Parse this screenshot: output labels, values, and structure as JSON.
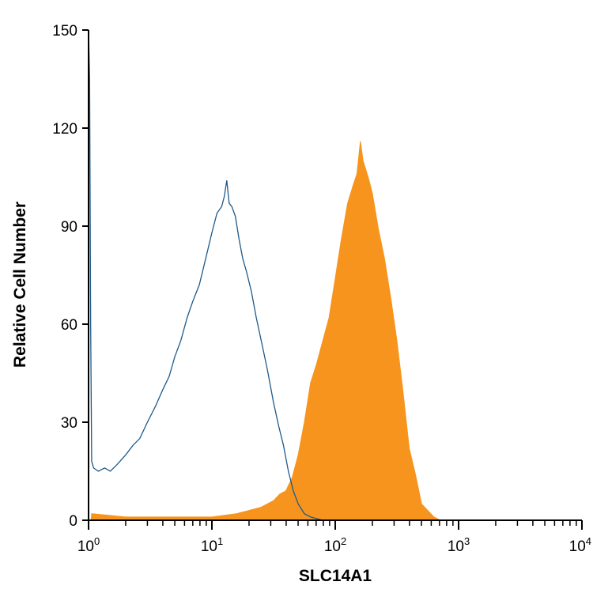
{
  "chart_data": {
    "type": "area",
    "xlabel": "SLC14A1",
    "ylabel": "Relative Cell Number",
    "x_scale": "log",
    "xlim": [
      1,
      10000
    ],
    "ylim": [
      0,
      150
    ],
    "x_ticks": [
      {
        "value": 1,
        "base": "10",
        "exp": "0"
      },
      {
        "value": 10,
        "base": "10",
        "exp": "1"
      },
      {
        "value": 100,
        "base": "10",
        "exp": "2"
      },
      {
        "value": 1000,
        "base": "10",
        "exp": "3"
      },
      {
        "value": 10000,
        "base": "10",
        "exp": "4"
      }
    ],
    "y_ticks": [
      "0",
      "30",
      "60",
      "90",
      "120",
      "150"
    ],
    "y_tick_values": [
      0,
      30,
      60,
      90,
      120,
      150
    ],
    "grid": false,
    "series": [
      {
        "style": "outline",
        "color": "#1f5a8a",
        "points": [
          [
            1.0,
            150
          ],
          [
            1.02,
            135
          ],
          [
            1.04,
            60
          ],
          [
            1.06,
            18
          ],
          [
            1.1,
            16
          ],
          [
            1.2,
            15
          ],
          [
            1.35,
            16
          ],
          [
            1.5,
            15
          ],
          [
            1.7,
            17
          ],
          [
            2.0,
            20
          ],
          [
            2.3,
            23
          ],
          [
            2.6,
            25
          ],
          [
            3.0,
            30
          ],
          [
            3.5,
            35
          ],
          [
            4.0,
            40
          ],
          [
            4.5,
            44
          ],
          [
            5.0,
            50
          ],
          [
            5.6,
            55
          ],
          [
            6.3,
            62
          ],
          [
            7.0,
            67
          ],
          [
            7.9,
            72
          ],
          [
            8.9,
            80
          ],
          [
            10.0,
            88
          ],
          [
            11.0,
            94
          ],
          [
            12.0,
            96
          ],
          [
            12.6,
            99
          ],
          [
            13.2,
            104
          ],
          [
            13.8,
            97
          ],
          [
            14.5,
            96
          ],
          [
            15.5,
            93
          ],
          [
            16.6,
            86
          ],
          [
            17.8,
            80
          ],
          [
            19.1,
            76
          ],
          [
            20.9,
            70
          ],
          [
            22.9,
            62
          ],
          [
            25.1,
            55
          ],
          [
            28.2,
            46
          ],
          [
            31.6,
            36
          ],
          [
            34.7,
            29
          ],
          [
            38.0,
            23
          ],
          [
            41.7,
            15
          ],
          [
            45.7,
            9
          ],
          [
            50.1,
            5
          ],
          [
            56.2,
            2
          ],
          [
            63.1,
            1
          ],
          [
            79.4,
            0
          ],
          [
            10000,
            0
          ]
        ]
      },
      {
        "style": "filled",
        "color": "#f7941d",
        "points": [
          [
            1.0,
            0
          ],
          [
            1.05,
            0
          ],
          [
            1.06,
            2
          ],
          [
            2.0,
            1
          ],
          [
            5.0,
            1
          ],
          [
            10.0,
            1
          ],
          [
            15.8,
            2
          ],
          [
            20.0,
            3
          ],
          [
            25.1,
            4
          ],
          [
            31.6,
            6
          ],
          [
            35.5,
            8
          ],
          [
            39.8,
            9
          ],
          [
            44.7,
            13
          ],
          [
            50.1,
            20
          ],
          [
            56.2,
            30
          ],
          [
            63.1,
            42
          ],
          [
            70.8,
            48
          ],
          [
            79.4,
            55
          ],
          [
            89.1,
            62
          ],
          [
            100,
            74
          ],
          [
            112,
            86
          ],
          [
            126,
            97
          ],
          [
            141,
            103
          ],
          [
            150,
            106
          ],
          [
            160,
            116
          ],
          [
            168,
            110
          ],
          [
            178,
            107
          ],
          [
            188,
            104
          ],
          [
            200,
            100
          ],
          [
            224,
            89
          ],
          [
            251,
            80
          ],
          [
            282,
            68
          ],
          [
            316,
            55
          ],
          [
            355,
            39
          ],
          [
            398,
            22
          ],
          [
            447,
            14
          ],
          [
            501,
            5
          ],
          [
            562,
            3
          ],
          [
            631,
            1
          ],
          [
            708,
            0
          ],
          [
            10000,
            0
          ]
        ]
      }
    ]
  }
}
